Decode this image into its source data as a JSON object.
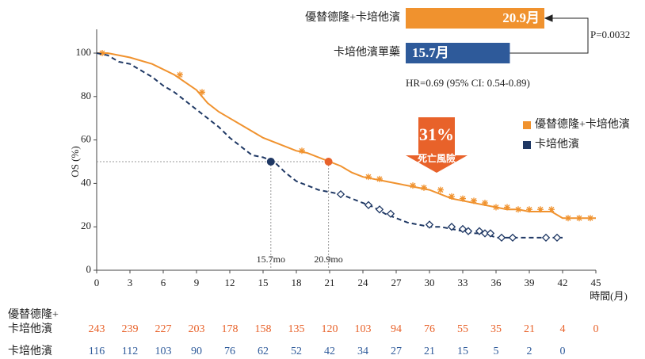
{
  "chart_data": {
    "type": "line",
    "ylabel": "OS (%)",
    "xlabel": "時間(月)",
    "xlim": [
      0,
      45
    ],
    "xticks": [
      0,
      3,
      6,
      9,
      12,
      15,
      18,
      21,
      24,
      27,
      30,
      33,
      36,
      39,
      42,
      45
    ],
    "ylim": [
      0,
      100
    ],
    "yticks": [
      0,
      20,
      40,
      60,
      80,
      100
    ],
    "series": [
      {
        "name": "優替德隆+卡培他濱",
        "color": "#f0922e",
        "dash": false,
        "x": [
          0,
          1,
          3,
          5,
          7,
          9,
          10,
          11,
          12,
          13,
          14,
          15,
          16,
          17,
          18,
          19,
          20,
          21,
          22,
          23,
          24,
          25,
          26,
          27,
          28,
          29,
          30,
          31,
          32,
          33,
          34,
          35,
          36,
          37,
          38,
          39,
          41,
          42,
          45
        ],
        "values": [
          100,
          100,
          98,
          95,
          90,
          83,
          77,
          73,
          70,
          67,
          64,
          61,
          59,
          57,
          55,
          54,
          52,
          50,
          48,
          45,
          43,
          42,
          41,
          40,
          39,
          38,
          37,
          35,
          33,
          32,
          31,
          30,
          29,
          28,
          28,
          27,
          27,
          24,
          24
        ],
        "censor_x": [
          0.5,
          7.5,
          9.5,
          18.5,
          24.5,
          25.5,
          28.5,
          29.5,
          31,
          32,
          33,
          34,
          35,
          36,
          37,
          38,
          39,
          40,
          41,
          42.5,
          43.5,
          44.5
        ],
        "censor_y": [
          100,
          90,
          82,
          55,
          43,
          42,
          39,
          38,
          37,
          34,
          33,
          32,
          31,
          29,
          29,
          28,
          28,
          28,
          28,
          24,
          24,
          24
        ]
      },
      {
        "name": "卡培他濱",
        "color": "#1f3864",
        "dash": true,
        "x": [
          0,
          1,
          2,
          3,
          4,
          5,
          6,
          7,
          8,
          9,
          10,
          11,
          12,
          13,
          14,
          15,
          16,
          17,
          18,
          19,
          20,
          21,
          22,
          23,
          24,
          25,
          26,
          27,
          28,
          29,
          30,
          31,
          32,
          33,
          34,
          35,
          36,
          38,
          40,
          42
        ],
        "values": [
          100,
          99,
          96,
          95,
          92,
          89,
          85,
          82,
          78,
          74,
          70,
          66,
          61,
          57,
          53,
          52,
          50,
          45,
          41,
          39,
          37,
          36,
          35,
          33,
          31,
          29,
          26,
          24,
          22,
          21,
          20,
          20,
          19,
          18,
          17,
          17,
          15,
          15,
          15,
          15
        ],
        "censor_x": [
          22,
          24.5,
          25.5,
          26.5,
          30,
          32,
          33,
          33.5,
          34.5,
          35,
          35.5,
          36.5,
          37.5,
          40.5,
          41.5
        ],
        "censor_y": [
          35,
          30,
          28,
          26,
          21,
          20,
          19,
          18,
          18,
          17,
          17,
          15,
          15,
          15,
          15
        ]
      }
    ],
    "medians": [
      {
        "x": 15.7,
        "y": 50,
        "label": "15.7mo",
        "color": "#1f3864"
      },
      {
        "x": 20.9,
        "y": 50,
        "label": "20.9mo",
        "color": "#e8622a"
      }
    ],
    "median_bars": [
      {
        "name": "優替德隆+卡培他濱",
        "value": 20.9,
        "label": "20.9月",
        "color": "#f0922e"
      },
      {
        "name": "卡培他濱單藥",
        "value": 15.7,
        "label": "15.7月",
        "color": "#2e5a9a"
      }
    ],
    "p_value": "P=0.0032",
    "hr_text": "HR=0.69 (95% CI: 0.54-0.89)",
    "risk_reduction": {
      "value": 31,
      "label": "31%",
      "text": "死亡風險"
    },
    "risk_table": [
      {
        "label_lines": [
          "優替德隆+",
          "卡培他濱"
        ],
        "color": "#e8622a",
        "values": [
          243,
          239,
          227,
          203,
          178,
          158,
          135,
          120,
          103,
          94,
          76,
          55,
          35,
          21,
          4,
          0
        ]
      },
      {
        "label_lines": [
          "卡培他濱"
        ],
        "color": "#2e5a9a",
        "values": [
          116,
          112,
          103,
          90,
          76,
          62,
          52,
          42,
          34,
          27,
          21,
          15,
          5,
          2,
          0
        ]
      }
    ]
  }
}
